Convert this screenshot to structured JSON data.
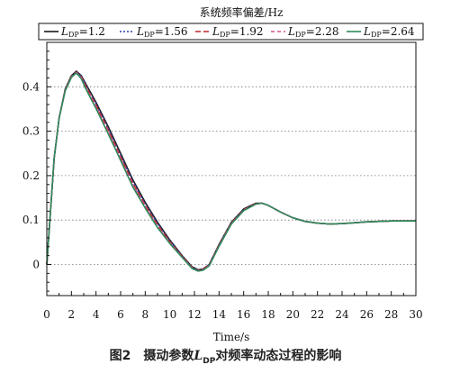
{
  "caption": {
    "prefix": "图2　摄动参数",
    "symbol": "L",
    "subscript": "DP",
    "suffix": "对频率动态过程的影响"
  },
  "chart_data": {
    "type": "line",
    "title": "系统频率偏差/Hz",
    "xlabel": "Time/s",
    "ylabel": "",
    "xlim": [
      0,
      30
    ],
    "ylim": [
      -0.07,
      0.5
    ],
    "xticks": [
      0,
      2,
      4,
      6,
      8,
      10,
      12,
      14,
      16,
      18,
      20,
      22,
      24,
      26,
      28,
      30
    ],
    "xtick_labels": [
      "0",
      "2",
      "4",
      "6",
      "8",
      "10",
      "12",
      "14",
      "16",
      "18",
      "20",
      "22",
      "24",
      "26",
      "28",
      "30"
    ],
    "yticks": [
      0,
      0.1,
      0.2,
      0.3,
      0.4
    ],
    "ytick_labels": [
      "0",
      "0.1",
      "0.2",
      "0.3",
      "0.4"
    ],
    "grid": "horizontal dotted",
    "legend_position": "top",
    "x": [
      0,
      0.3,
      0.6,
      1.0,
      1.5,
      2.0,
      2.4,
      2.8,
      3.2,
      3.6,
      4.0,
      5.0,
      6.0,
      7.0,
      8.0,
      9.0,
      10.0,
      11.0,
      11.8,
      12.3,
      12.7,
      13.2,
      14.0,
      15.0,
      16.0,
      17.0,
      17.5,
      18.0,
      19.0,
      20.0,
      21.0,
      22.0,
      23.0,
      24.0,
      25.0,
      26.0,
      27.0,
      28.0,
      29.0,
      30.0
    ],
    "series": [
      {
        "name": "=1.2",
        "color": "#1a1a1a",
        "dash": "",
        "values": [
          0,
          0.12,
          0.24,
          0.33,
          0.395,
          0.425,
          0.435,
          0.425,
          0.405,
          0.385,
          0.365,
          0.31,
          0.25,
          0.19,
          0.14,
          0.095,
          0.055,
          0.02,
          -0.005,
          -0.012,
          -0.01,
          0.0,
          0.045,
          0.095,
          0.125,
          0.138,
          0.138,
          0.133,
          0.118,
          0.105,
          0.097,
          0.093,
          0.091,
          0.092,
          0.094,
          0.096,
          0.097,
          0.098,
          0.098,
          0.098
        ]
      },
      {
        "name": "=1.56",
        "color": "#2c3fa8",
        "dash": "2,2",
        "values": [
          0,
          0.12,
          0.24,
          0.33,
          0.394,
          0.424,
          0.434,
          0.424,
          0.403,
          0.382,
          0.362,
          0.306,
          0.246,
          0.186,
          0.137,
          0.092,
          0.053,
          0.019,
          -0.006,
          -0.013,
          -0.011,
          0.0,
          0.044,
          0.094,
          0.124,
          0.137,
          0.138,
          0.133,
          0.118,
          0.105,
          0.097,
          0.093,
          0.091,
          0.092,
          0.094,
          0.096,
          0.097,
          0.098,
          0.098,
          0.098
        ]
      },
      {
        "name": "=1.92",
        "color": "#c0272d",
        "dash": "6,3",
        "values": [
          0,
          0.12,
          0.24,
          0.33,
          0.393,
          0.423,
          0.433,
          0.422,
          0.4,
          0.379,
          0.358,
          0.302,
          0.242,
          0.182,
          0.133,
          0.089,
          0.051,
          0.018,
          -0.007,
          -0.014,
          -0.011,
          -0.001,
          0.043,
          0.093,
          0.123,
          0.137,
          0.138,
          0.133,
          0.118,
          0.105,
          0.097,
          0.093,
          0.091,
          0.092,
          0.094,
          0.096,
          0.097,
          0.098,
          0.098,
          0.098
        ]
      },
      {
        "name": "=2.28",
        "color": "#d9508a",
        "dash": "4,3",
        "values": [
          0,
          0.12,
          0.24,
          0.33,
          0.392,
          0.422,
          0.432,
          0.42,
          0.397,
          0.376,
          0.355,
          0.298,
          0.238,
          0.178,
          0.13,
          0.086,
          0.049,
          0.017,
          -0.008,
          -0.014,
          -0.012,
          -0.002,
          0.042,
          0.092,
          0.122,
          0.136,
          0.138,
          0.133,
          0.118,
          0.105,
          0.097,
          0.093,
          0.091,
          0.092,
          0.094,
          0.096,
          0.097,
          0.098,
          0.098,
          0.098
        ]
      },
      {
        "name": "=2.64",
        "color": "#2f8a5a",
        "dash": "",
        "values": [
          0,
          0.12,
          0.24,
          0.33,
          0.391,
          0.421,
          0.431,
          0.418,
          0.394,
          0.372,
          0.351,
          0.294,
          0.234,
          0.174,
          0.127,
          0.083,
          0.047,
          0.016,
          -0.009,
          -0.015,
          -0.013,
          -0.003,
          0.041,
          0.091,
          0.121,
          0.136,
          0.138,
          0.133,
          0.118,
          0.105,
          0.097,
          0.093,
          0.091,
          0.092,
          0.094,
          0.096,
          0.097,
          0.098,
          0.098,
          0.098
        ]
      }
    ]
  },
  "legend": {
    "symbol": "L",
    "subscript": "DP"
  }
}
